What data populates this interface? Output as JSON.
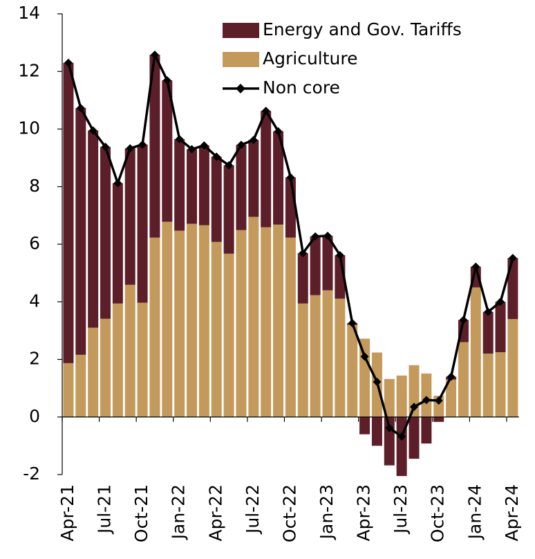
{
  "chart_data": {
    "type": "stacked_bar_line",
    "categories": [
      "Apr-21",
      null,
      null,
      "Jul-21",
      null,
      null,
      "Oct-21",
      null,
      null,
      "Jan-22",
      null,
      null,
      "Apr-22",
      null,
      null,
      "Jul-22",
      null,
      null,
      "Oct-22",
      null,
      null,
      "Jan-23",
      null,
      null,
      "Apr-23",
      null,
      null,
      "Jul-23",
      null,
      null,
      "Oct-23",
      null,
      null,
      "Jan-24",
      null,
      null,
      "Apr-24"
    ],
    "series": [
      {
        "name": "Energy and Gov. Tariffs",
        "kind": "bar",
        "color": "#5c1f2a",
        "values": [
          10.43,
          8.57,
          6.85,
          5.97,
          4.18,
          4.74,
          5.49,
          6.35,
          4.91,
          3.18,
          2.59,
          2.77,
          2.96,
          3.07,
          2.96,
          2.67,
          4.04,
          3.24,
          2.09,
          1.75,
          2.04,
          1.89,
          1.51,
          0.06,
          -0.6,
          -1.0,
          -1.68,
          -2.05,
          -1.45,
          -0.92,
          -0.17,
          0.1,
          0.77,
          0.72,
          1.45,
          1.75,
          2.12
        ]
      },
      {
        "name": "Agriculture",
        "kind": "bar",
        "color": "#c49a5c",
        "values": [
          1.87,
          2.16,
          3.1,
          3.41,
          3.94,
          4.59,
          3.97,
          6.23,
          6.78,
          6.47,
          6.71,
          6.66,
          6.08,
          5.67,
          6.49,
          6.95,
          6.59,
          6.68,
          6.23,
          3.94,
          4.23,
          4.4,
          4.11,
          3.2,
          2.72,
          2.24,
          1.32,
          1.44,
          1.8,
          1.51,
          0.74,
          1.3,
          2.6,
          4.5,
          2.2,
          2.25,
          3.4
        ]
      },
      {
        "name": "Non core",
        "kind": "line",
        "color": "#000000",
        "values": [
          12.3,
          10.73,
          9.95,
          9.38,
          8.12,
          9.33,
          9.46,
          12.58,
          11.69,
          9.65,
          9.3,
          9.43,
          9.04,
          8.74,
          9.45,
          9.62,
          10.63,
          9.92,
          8.32,
          5.69,
          6.27,
          6.29,
          5.62,
          3.26,
          2.1,
          1.22,
          -0.38,
          -0.68,
          0.35,
          0.59,
          0.57,
          1.4,
          3.37,
          5.22,
          3.65,
          4.0,
          5.52
        ]
      }
    ],
    "ylim": [
      -2,
      14
    ],
    "yticks": [
      -2,
      0,
      2,
      4,
      6,
      8,
      10,
      12,
      14
    ],
    "grid": false,
    "legend": "top-right"
  }
}
